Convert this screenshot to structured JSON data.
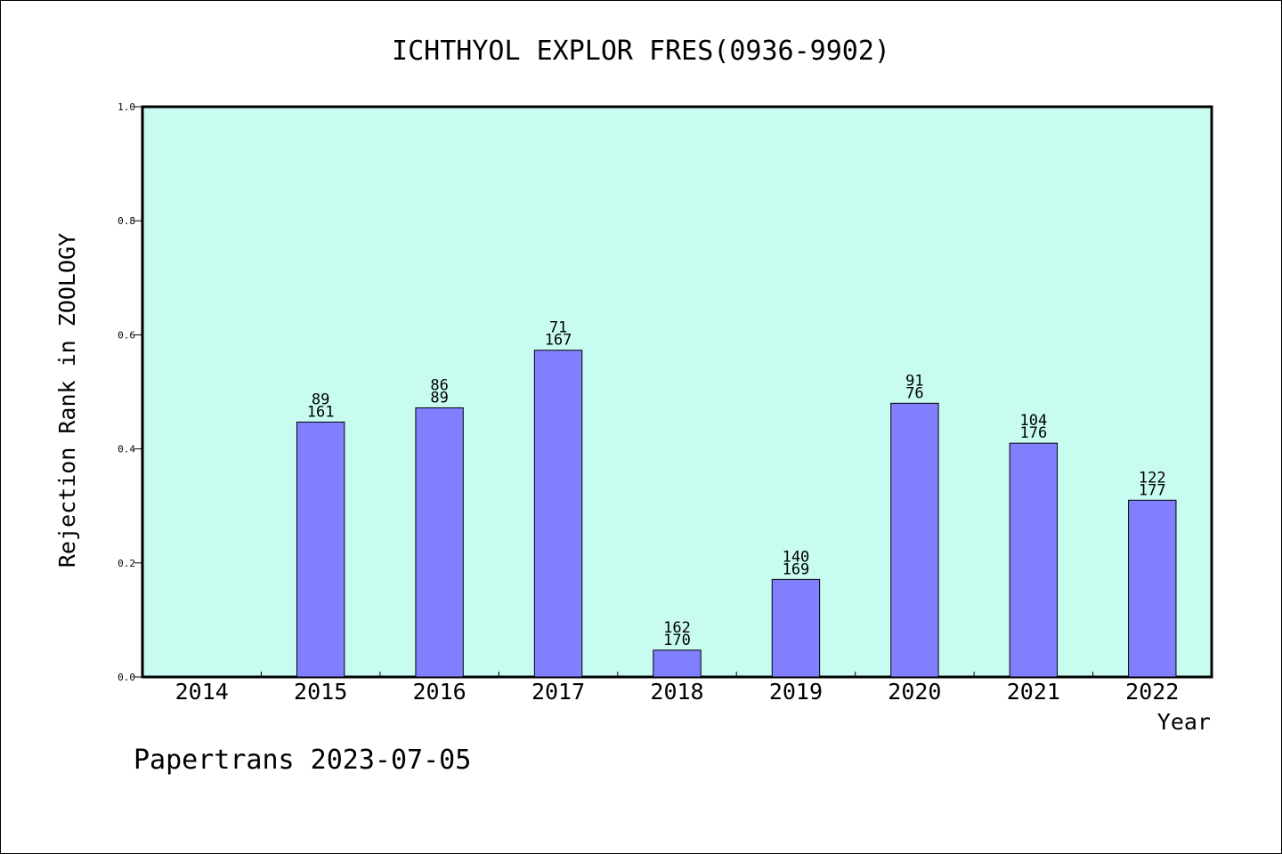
{
  "chart_data": {
    "type": "bar",
    "title": "ICHTHYOL EXPLOR FRES(0936-9902)",
    "xlabel": "Year",
    "ylabel": "Rejection Rank in ZOOLOGY",
    "ylim": [
      0,
      1.0
    ],
    "yticks": [
      "0.0",
      "0.2",
      "0.4",
      "0.6",
      "0.8",
      "1.0"
    ],
    "categories": [
      "2014",
      "2015",
      "2016",
      "2017",
      "2018",
      "2019",
      "2020",
      "2021",
      "2022"
    ],
    "values": [
      null,
      0.447,
      0.472,
      0.573,
      0.047,
      0.171,
      0.48,
      0.41,
      0.31
    ],
    "labels_top": [
      "",
      "89",
      "86",
      "71",
      "162",
      "140",
      "91",
      "104",
      "122"
    ],
    "labels_bottom": [
      "",
      "161",
      "89",
      "167",
      "170",
      "169",
      "76",
      "176",
      "177"
    ],
    "grid": false,
    "legend": "none",
    "colors": {
      "plot_bg": "#c8fcf0",
      "bar": "#8080ff",
      "bar_edge": "#000000"
    }
  },
  "footer": "Papertrans 2023-07-05"
}
